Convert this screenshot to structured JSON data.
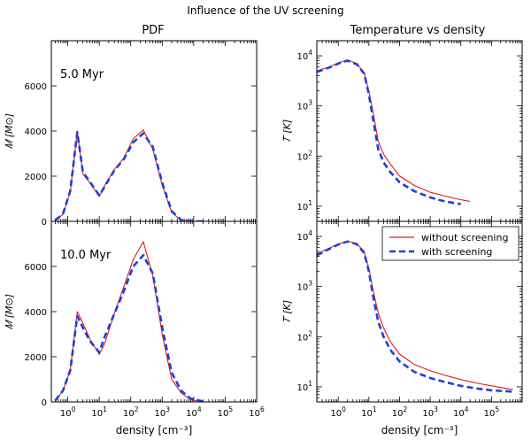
{
  "figure": {
    "suptitle": "Influence of the UV screening",
    "left_title": "PDF",
    "right_title": "Temperature vs density"
  },
  "chart_data": [
    {
      "id": "pdf_top",
      "type": "line",
      "xscale": "log",
      "yscale": "linear",
      "xlim": [
        0.3,
        1000000
      ],
      "ylim": [
        0,
        8000
      ],
      "annotation": "5.0 Myr",
      "xlabel": "",
      "ylabel": "M [M⊙]",
      "ylabel_display": "𝑀 [M⊙]",
      "yticks": [
        0,
        2000,
        4000,
        6000
      ],
      "ytick_labels": [
        "0",
        "2000",
        "4000",
        "6000"
      ],
      "series": [
        {
          "name": "without screening",
          "color": "#e41a1c",
          "dash": "solid",
          "x": [
            0.4,
            0.7,
            1.2,
            2.0,
            3.0,
            5.0,
            10,
            15,
            30,
            60,
            120,
            250,
            500,
            1000,
            2000,
            4000,
            8000,
            20000
          ],
          "y": [
            50,
            300,
            1300,
            4000,
            2100,
            1700,
            1100,
            1600,
            2300,
            2800,
            3650,
            4050,
            3200,
            1600,
            400,
            40,
            0,
            0
          ]
        },
        {
          "name": "with screening",
          "color": "#1f3fd6",
          "dash": "dashed",
          "x": [
            0.4,
            0.7,
            1.2,
            2.0,
            3.0,
            5.0,
            10,
            15,
            30,
            60,
            120,
            250,
            500,
            1000,
            2000,
            4000,
            8000,
            20000
          ],
          "y": [
            60,
            320,
            1350,
            3950,
            2200,
            1750,
            1150,
            1550,
            2250,
            2750,
            3500,
            3900,
            3300,
            1700,
            450,
            60,
            0,
            0
          ]
        }
      ]
    },
    {
      "id": "pdf_bottom",
      "type": "line",
      "xscale": "log",
      "yscale": "linear",
      "xlim": [
        0.3,
        1000000
      ],
      "ylim": [
        0,
        8000
      ],
      "annotation": "10.0 Myr",
      "xlabel": "density [cm⁻³]",
      "ylabel": "M [M⊙]",
      "ylabel_display": "𝑀 [M⊙]",
      "yticks": [
        0,
        2000,
        4000,
        6000
      ],
      "ytick_labels": [
        "0",
        "2000",
        "4000",
        "6000"
      ],
      "xticks": [
        1,
        10,
        100,
        1000,
        10000,
        100000,
        1000000
      ],
      "xtick_labels": [
        [
          "10",
          "0"
        ],
        [
          "10",
          "1"
        ],
        [
          "10",
          "2"
        ],
        [
          "10",
          "3"
        ],
        [
          "10",
          "4"
        ],
        [
          "10",
          "5"
        ],
        [
          "10",
          "6"
        ]
      ],
      "series": [
        {
          "name": "without screening",
          "color": "#e41a1c",
          "dash": "solid",
          "x": [
            0.4,
            0.7,
            1.2,
            2.0,
            3.0,
            5.0,
            10,
            15,
            30,
            60,
            120,
            250,
            500,
            1000,
            2000,
            4000,
            8000,
            20000
          ],
          "y": [
            50,
            500,
            1400,
            4000,
            3500,
            2800,
            2100,
            2600,
            3900,
            5100,
            6300,
            7100,
            5600,
            3000,
            1000,
            400,
            100,
            0
          ]
        },
        {
          "name": "with screening",
          "color": "#1f3fd6",
          "dash": "dashed",
          "x": [
            0.4,
            0.7,
            1.2,
            2.0,
            3.0,
            5.0,
            10,
            15,
            30,
            60,
            120,
            250,
            500,
            1000,
            2000,
            4000,
            8000,
            20000
          ],
          "y": [
            60,
            500,
            1400,
            3800,
            3300,
            2700,
            2200,
            2900,
            3900,
            4900,
            6000,
            6500,
            5700,
            3300,
            1300,
            500,
            150,
            20
          ]
        }
      ]
    },
    {
      "id": "temp_top",
      "type": "line",
      "xscale": "log",
      "yscale": "log",
      "xlim": [
        0.2,
        1000000
      ],
      "ylim": [
        5,
        20000
      ],
      "xlabel": "",
      "ylabel": "T [K]",
      "ylabel_display": "𝑇 [K]",
      "yticks": [
        10,
        100,
        1000,
        10000
      ],
      "ytick_labels": [
        [
          "10",
          "1"
        ],
        [
          "10",
          "2"
        ],
        [
          "10",
          "3"
        ],
        [
          "10",
          "4"
        ]
      ],
      "series": [
        {
          "name": "without screening",
          "color": "#e41a1c",
          "dash": "solid",
          "x": [
            0.2,
            0.5,
            1,
            2,
            4,
            7,
            10,
            14,
            20,
            30,
            50,
            100,
            300,
            1000,
            3000,
            10000,
            20000
          ],
          "y": [
            5000,
            6000,
            7200,
            8300,
            7000,
            4600,
            2000,
            700,
            200,
            110,
            70,
            40,
            26,
            19,
            16,
            13.5,
            12.5
          ]
        },
        {
          "name": "with screening",
          "color": "#1f3fd6",
          "dash": "dashed",
          "x": [
            0.2,
            0.5,
            1,
            2,
            4,
            7,
            10,
            14,
            20,
            30,
            50,
            100,
            300,
            1000,
            3000,
            10000
          ],
          "y": [
            4800,
            5800,
            7000,
            8000,
            6800,
            4400,
            1700,
            500,
            140,
            75,
            48,
            30,
            20,
            15,
            12.5,
            11
          ]
        }
      ]
    },
    {
      "id": "temp_bottom",
      "type": "line",
      "xscale": "log",
      "yscale": "log",
      "xlim": [
        0.2,
        1000000
      ],
      "ylim": [
        5,
        20000
      ],
      "xlabel": "density [cm⁻³]",
      "ylabel": "T [K]",
      "ylabel_display": "𝑇 [K]",
      "yticks": [
        10,
        100,
        1000,
        10000
      ],
      "ytick_labels": [
        [
          "10",
          "1"
        ],
        [
          "10",
          "2"
        ],
        [
          "10",
          "3"
        ],
        [
          "10",
          "4"
        ]
      ],
      "xticks": [
        1,
        10,
        100,
        1000,
        10000,
        100000
      ],
      "xtick_labels": [
        [
          "10",
          "0"
        ],
        [
          "10",
          "1"
        ],
        [
          "10",
          "2"
        ],
        [
          "10",
          "3"
        ],
        [
          "10",
          "4"
        ],
        [
          "10",
          "5"
        ]
      ],
      "legend": {
        "placement": "top-right",
        "entries": [
          {
            "label": "without screening",
            "color": "#e41a1c",
            "dash": "solid"
          },
          {
            "label": "with screening",
            "color": "#1f3fd6",
            "dash": "dashed"
          }
        ]
      },
      "series": [
        {
          "name": "without screening",
          "color": "#e41a1c",
          "dash": "solid",
          "x": [
            0.2,
            0.5,
            1,
            2,
            4,
            7,
            10,
            14,
            20,
            30,
            50,
            100,
            300,
            1000,
            3000,
            10000,
            30000,
            100000,
            500000
          ],
          "y": [
            4500,
            5800,
            7000,
            8000,
            7200,
            5000,
            2300,
            800,
            300,
            150,
            80,
            45,
            28,
            21,
            17,
            14,
            12,
            10.5,
            8.8
          ]
        },
        {
          "name": "with screening",
          "color": "#1f3fd6",
          "dash": "dashed",
          "x": [
            0.2,
            0.5,
            1,
            2,
            4,
            7,
            10,
            14,
            20,
            30,
            50,
            100,
            300,
            1000,
            3000,
            10000,
            30000,
            100000,
            500000
          ],
          "y": [
            4200,
            5600,
            6900,
            7900,
            7000,
            4700,
            2000,
            600,
            200,
            100,
            55,
            32,
            20,
            15,
            12.5,
            10.5,
            9.3,
            8.5,
            8
          ]
        }
      ]
    }
  ]
}
